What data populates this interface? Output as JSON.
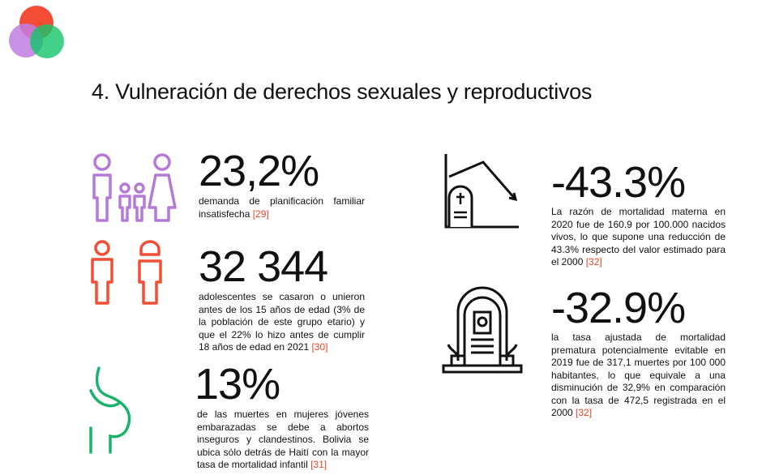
{
  "header": {
    "title": "4. Vulneración de derechos sexuales y reproductivos"
  },
  "stats": [
    {
      "value": "23,2%",
      "text": "demanda de planificación familiar insatisfecha",
      "ref": "[29]"
    },
    {
      "value": "32 344",
      "text": "adolescentes se casaron o unieron antes de los 15 años de edad (3% de la población de este grupo etario) y que el 22% lo hizo antes de cumplir 18 años de edad en 2021",
      "ref": "[30]"
    },
    {
      "value": "13%",
      "text": "de las muertes en mujeres jóvenes embarazadas se debe a abortos inseguros y clandestinos. Bolivia se ubica sólo detrás de Haití con la mayor tasa de mortalidad infantil",
      "ref": "[31]"
    },
    {
      "value": "-43.3%",
      "text": "La razón de mortalidad materna en 2020 fue de 160.9 por 100.000 nacidos vivos, lo que supone una reducción de 43.3% respecto del valor estimado para el 2000",
      "ref": "[32]"
    },
    {
      "value": "-32.9%",
      "text": "la tasa ajustada de mortalidad prematura potencialmente evitable en 2019 fue de 317,1 muertes por 100 000 habitantes, lo que equivale a una disminución de 32,9% en comparación con la tasa de 472,5 registrada en el 2000",
      "ref": "[32]"
    }
  ]
}
